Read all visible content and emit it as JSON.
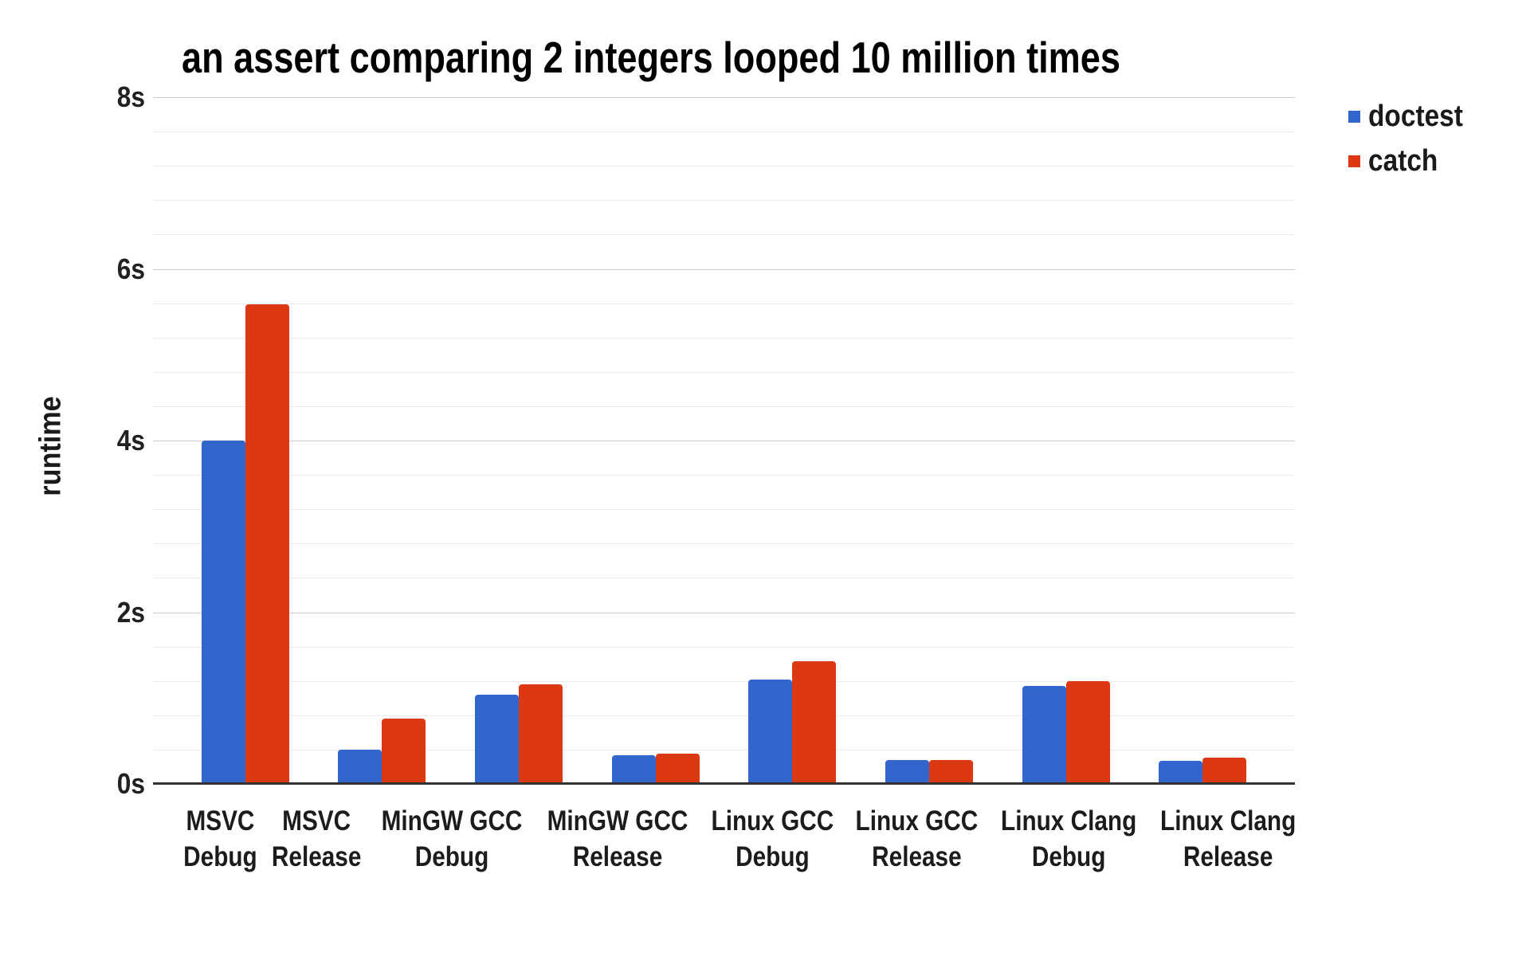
{
  "chart_data": {
    "type": "bar",
    "title": "an assert comparing 2 integers looped 10 million times",
    "xlabel": "",
    "ylabel": "runtime",
    "ylim": [
      0,
      8
    ],
    "yticks": [
      {
        "value": 0,
        "label": "0s"
      },
      {
        "value": 2,
        "label": "2s"
      },
      {
        "value": 4,
        "label": "4s"
      },
      {
        "value": 6,
        "label": "6s"
      },
      {
        "value": 8,
        "label": "8s"
      }
    ],
    "minor_gridline_step": 0.4,
    "grid": true,
    "legend_position": "top-right",
    "categories": [
      "MSVC Debug",
      "MSVC Release",
      "MinGW GCC Debug",
      "MinGW GCC Release",
      "Linux GCC Debug",
      "Linux GCC Release",
      "Linux Clang Debug",
      "Linux Clang Release"
    ],
    "series": [
      {
        "name": "doctest",
        "color": "#3366cc",
        "values": [
          4.0,
          0.4,
          1.04,
          0.33,
          1.22,
          0.28,
          1.14,
          0.27
        ]
      },
      {
        "name": "catch",
        "color": "#dc3912",
        "values": [
          5.59,
          0.76,
          1.16,
          0.35,
          1.43,
          0.28,
          1.2,
          0.31
        ]
      }
    ]
  },
  "colors": {
    "background": "#ffffff",
    "doctest_blue": "#3366cc",
    "catch_red": "#dc3912",
    "minor_gridline": "#ebebeb",
    "major_gridline": "#cccccc",
    "axis_baseline": "#333333",
    "text": "#1a1a1a"
  }
}
